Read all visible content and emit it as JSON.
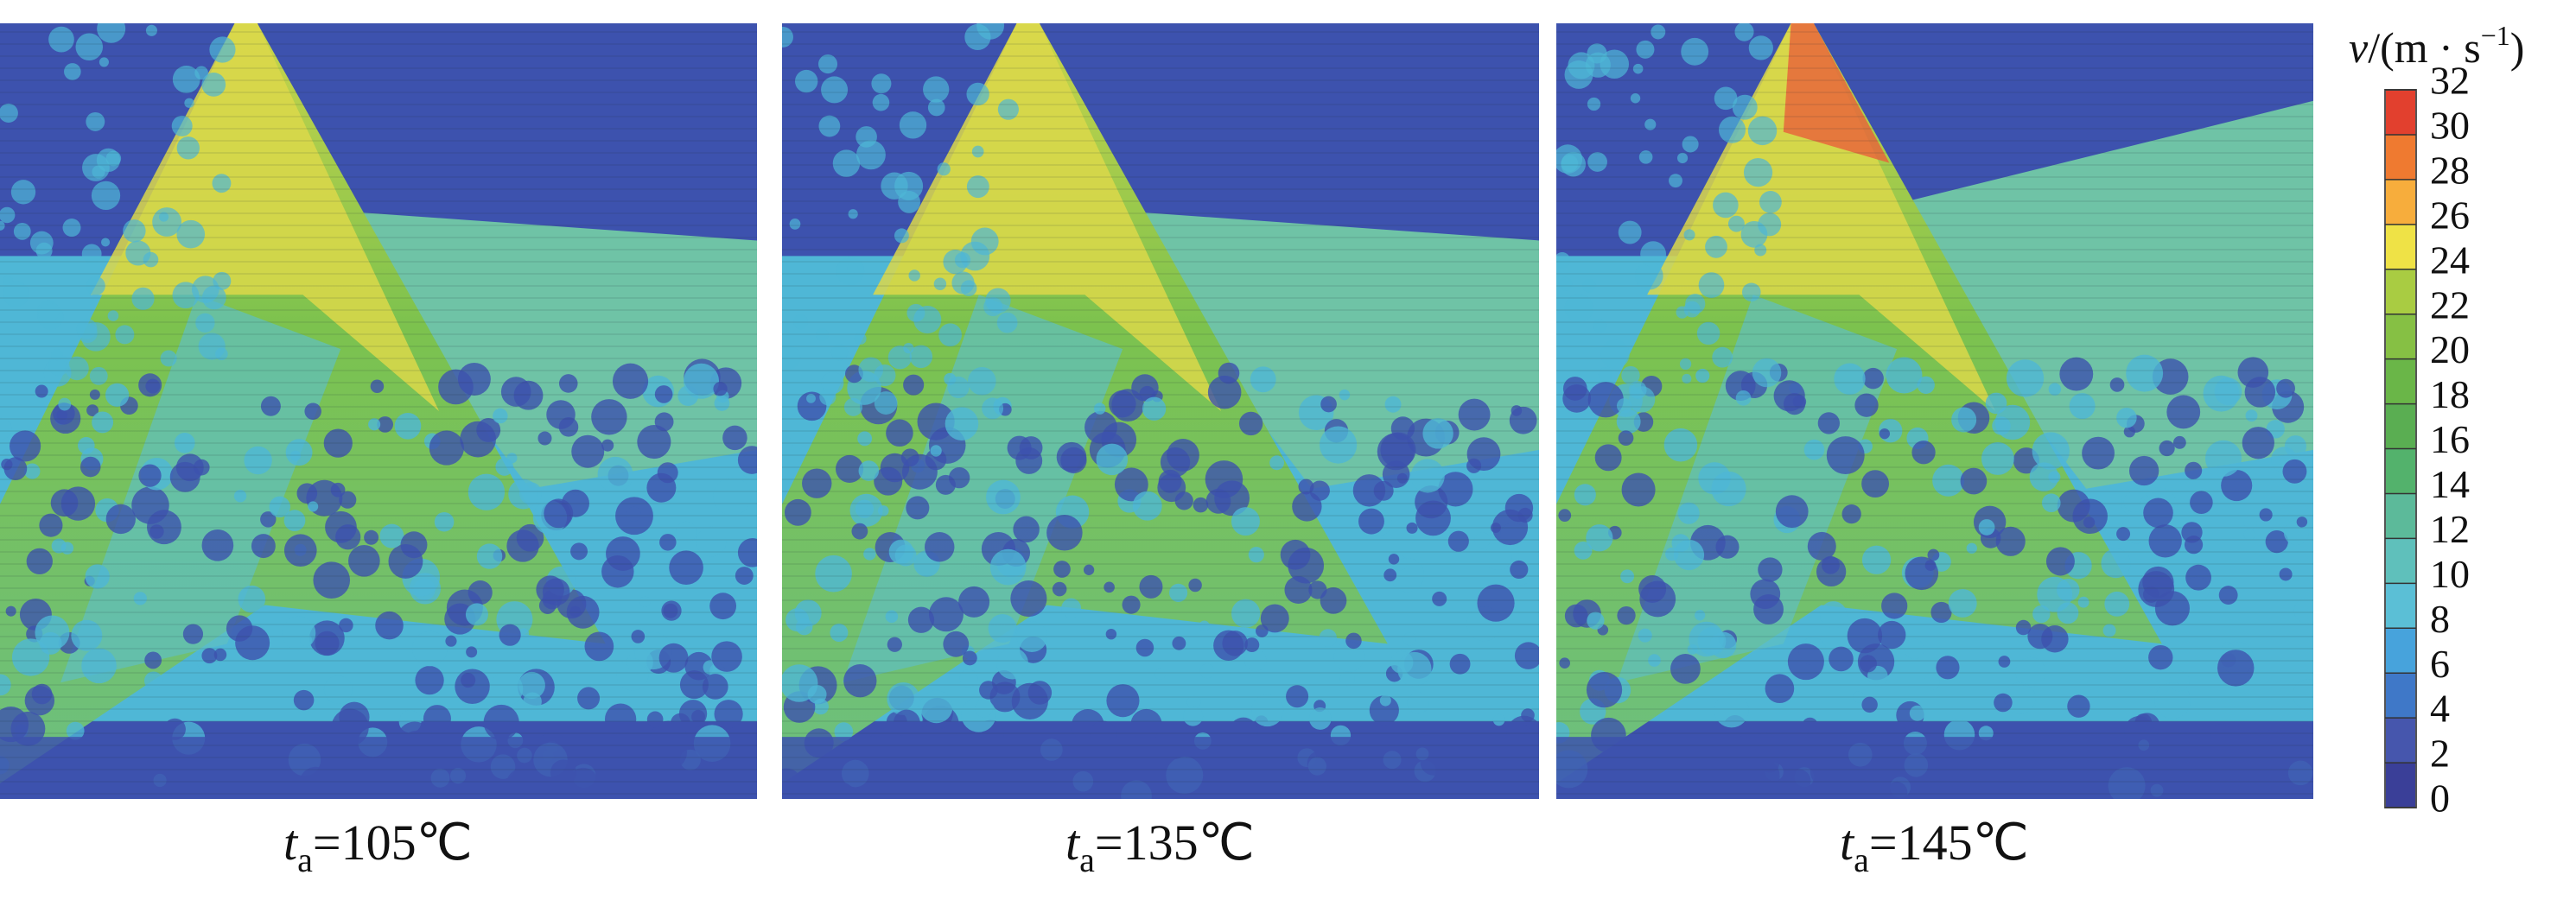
{
  "chart_data": {
    "type": "velocity-field-panels",
    "panels": [
      {
        "var": "t",
        "sub": "a",
        "text": "=105℃"
      },
      {
        "var": "t",
        "sub": "a",
        "text": "=135℃"
      },
      {
        "var": "t",
        "sub": "a",
        "text": "=145℃"
      }
    ],
    "colorbar": {
      "label_var": "v",
      "label_unit": "/(m · s",
      "label_exp": "−1",
      "label_close": ")",
      "lim": [
        0,
        32
      ],
      "ticks": [
        0,
        2,
        4,
        6,
        8,
        10,
        12,
        14,
        16,
        18,
        20,
        22,
        24,
        26,
        28,
        30,
        32
      ],
      "colors": [
        "#3a3f98",
        "#4656ad",
        "#3f78c8",
        "#47a3dc",
        "#5bbfd6",
        "#5fc0bb",
        "#5cba9a",
        "#53b26c",
        "#5aae52",
        "#6ab648",
        "#86c044",
        "#a9cc42",
        "#efe246",
        "#f7ad3c",
        "#ef7a30",
        "#e2402e"
      ]
    }
  }
}
